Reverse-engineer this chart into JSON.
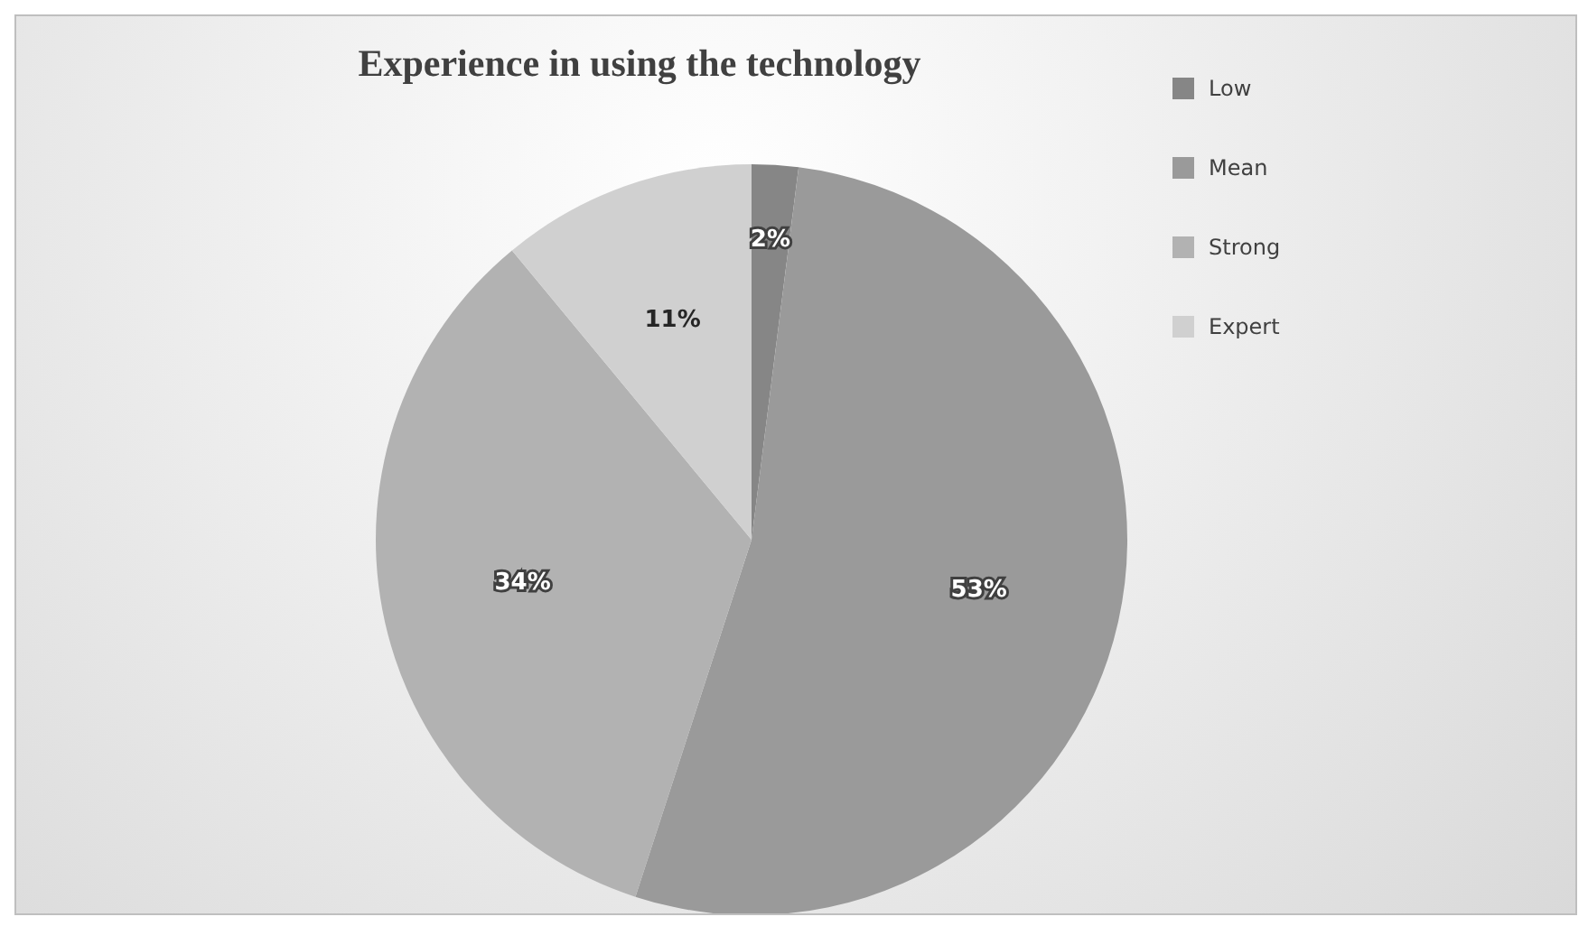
{
  "chart_data": {
    "type": "pie",
    "title": "Experience in using the technology",
    "categories": [
      "Low",
      "Mean",
      "Strong",
      "Expert"
    ],
    "values": [
      2,
      53,
      34,
      11
    ],
    "colors": [
      "#868686",
      "#9a9a9a",
      "#b2b2b2",
      "#d0d0d0"
    ],
    "value_labels": [
      "2%",
      "53%",
      "34%",
      "11%"
    ],
    "legend": "right"
  }
}
